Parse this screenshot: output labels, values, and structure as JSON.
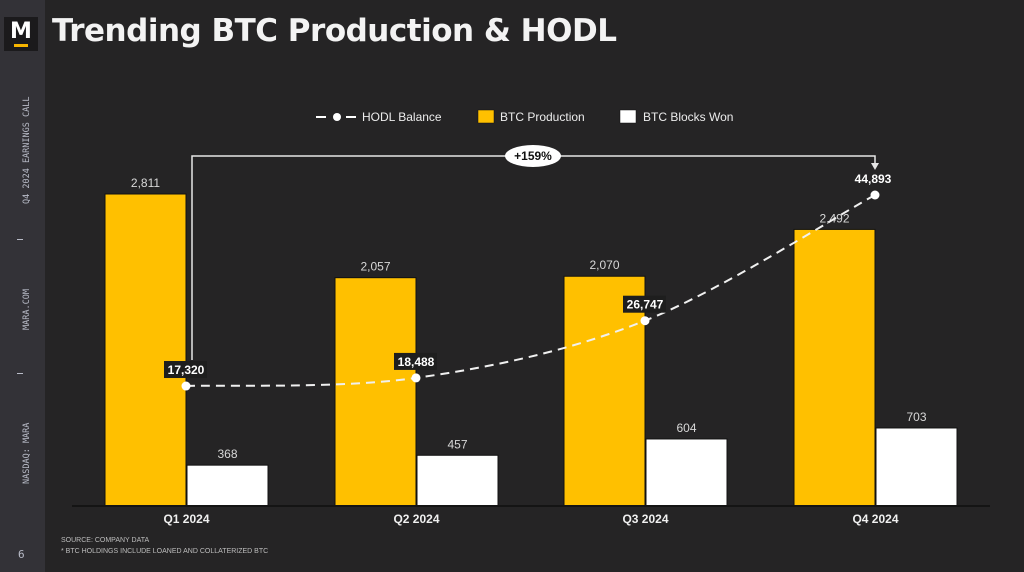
{
  "header": {
    "logo_letter": "M",
    "title": "Trending BTC Production & HODL"
  },
  "sidebar": {
    "event": "Q4 2024 EARNINGS CALL",
    "website": "MARA.COM",
    "ticker": "NASDAQ: MARA",
    "page_number": "6"
  },
  "footer": {
    "source": "SOURCE: COMPANY DATA",
    "note": "* BTC HOLDINGS INCLUDE LOANED AND COLLATERIZED BTC"
  },
  "colors": {
    "production": "#ffc000",
    "blocks": "#ffffff",
    "background": "#252425",
    "sidebar": "#333237"
  },
  "chart_data": {
    "type": "bar",
    "title": "Trending BTC Production & HODL",
    "categories": [
      "Q1 2024",
      "Q2 2024",
      "Q3 2024",
      "Q4 2024"
    ],
    "series": [
      {
        "name": "BTC Production",
        "kind": "bar",
        "values": [
          2811,
          2057,
          2070,
          2492
        ],
        "labels": [
          "2,811",
          "2,057",
          "2,070",
          "2,492"
        ]
      },
      {
        "name": "BTC Blocks Won",
        "kind": "bar",
        "values": [
          368,
          457,
          604,
          703
        ],
        "labels": [
          "368",
          "457",
          "604",
          "703"
        ]
      },
      {
        "name": "HODL Balance",
        "kind": "line",
        "values": [
          17320,
          18488,
          26747,
          44893
        ],
        "labels": [
          "17,320",
          "18,488",
          "26,747",
          "44,893"
        ]
      }
    ],
    "legend": [
      "HODL Balance",
      "BTC Production",
      "BTC Blocks Won"
    ],
    "legend_position": "top",
    "annotation": "+159%",
    "ylim_bars": [
      0,
      2811
    ],
    "ylim_line": [
      0,
      45000
    ],
    "grid": false,
    "xlabel": "",
    "ylabel": ""
  }
}
